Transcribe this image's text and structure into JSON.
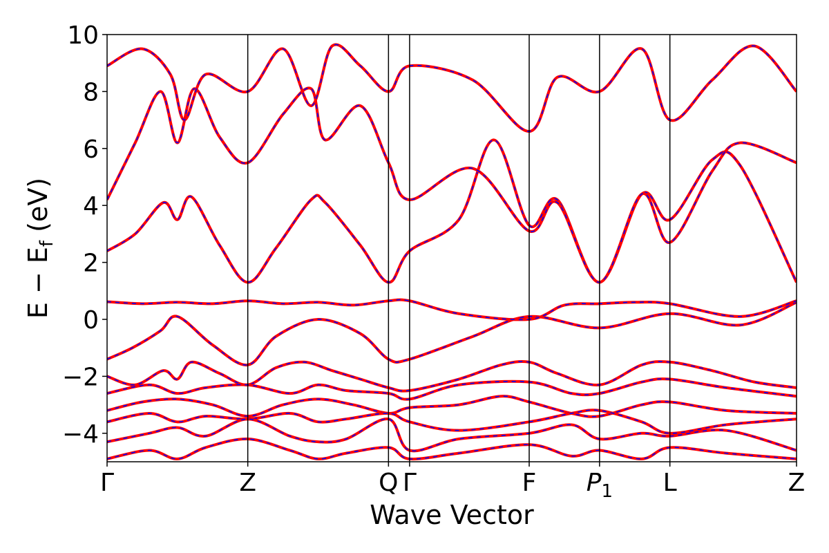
{
  "chart_data": {
    "type": "line",
    "xlabel": "Wave Vector",
    "ylabel": "E − E",
    "ylabel_subscript": "f",
    "ylabel_unit": " (eV)",
    "ylim": [
      -5,
      10
    ],
    "y_ticks": [
      -4,
      -2,
      0,
      2,
      4,
      6,
      8,
      10
    ],
    "y_tick_labels": [
      "−4",
      "−2",
      "0",
      "2",
      "4",
      "6",
      "8",
      "10"
    ],
    "kpath": [
      {
        "label": "Γ",
        "x": 0.0
      },
      {
        "label": "Z",
        "x": 1.0
      },
      {
        "label": "Q",
        "x": 2.0
      },
      {
        "label": "Γ",
        "x": 2.15
      },
      {
        "label": "F",
        "x": 3.0
      },
      {
        "label": "P",
        "sub": "1",
        "x": 3.5
      },
      {
        "label": "L",
        "x": 4.0
      },
      {
        "label": "Z",
        "x": 4.9
      }
    ],
    "xlim": [
      0,
      4.9
    ],
    "grid": false,
    "legend": "none",
    "line_color": "#ff0000",
    "dash_color": "#0000ff",
    "series": [
      {
        "x": [
          0,
          0.18,
          0.38,
          0.5,
          0.75,
          1.0,
          1.2,
          1.5,
          1.8,
          2.0,
          2.15,
          2.6,
          3.0,
          3.5,
          4.0,
          4.5,
          4.9
        ],
        "values": [
          -1.4,
          -1.0,
          -0.4,
          0.1,
          -0.9,
          -1.6,
          -0.6,
          0.0,
          -0.5,
          -1.4,
          -1.4,
          -0.6,
          0.1,
          -0.3,
          0.2,
          -0.2,
          0.6
        ]
      },
      {
        "x": [
          0,
          0.25,
          0.5,
          0.75,
          1.0,
          1.25,
          1.5,
          1.75,
          2.0,
          2.15,
          2.5,
          3.0,
          3.25,
          3.5,
          3.75,
          4.0,
          4.5,
          4.9
        ],
        "values": [
          0.62,
          0.55,
          0.6,
          0.55,
          0.65,
          0.55,
          0.6,
          0.5,
          0.65,
          0.65,
          0.2,
          0.0,
          0.5,
          0.55,
          0.6,
          0.55,
          0.1,
          0.65
        ]
      },
      {
        "x": [
          0,
          0.2,
          0.4,
          0.5,
          0.6,
          0.8,
          1.0,
          1.2,
          1.45,
          1.55,
          1.8,
          2.0,
          2.15,
          2.5,
          2.75,
          3.0,
          3.2,
          3.5,
          3.8,
          4.0,
          4.3,
          4.5,
          4.9
        ],
        "values": [
          2.4,
          3.0,
          4.1,
          3.5,
          4.3,
          2.6,
          1.3,
          2.5,
          4.2,
          4.1,
          2.6,
          1.3,
          2.4,
          3.5,
          6.3,
          3.3,
          4.2,
          1.3,
          4.4,
          3.5,
          5.6,
          5.4,
          1.3
        ]
      },
      {
        "x": [
          0,
          0.2,
          0.38,
          0.5,
          0.62,
          0.8,
          1.0,
          1.25,
          1.45,
          1.55,
          1.8,
          2.0,
          2.15,
          2.6,
          3.0,
          3.2,
          3.5,
          3.8,
          4.0,
          4.3,
          4.5,
          4.9
        ],
        "values": [
          4.2,
          6.2,
          8.0,
          6.2,
          8.1,
          6.4,
          5.5,
          7.2,
          8.1,
          6.3,
          7.5,
          5.5,
          4.2,
          5.3,
          3.1,
          4.1,
          1.3,
          4.4,
          2.7,
          5.2,
          6.2,
          5.5
        ]
      },
      {
        "x": [
          0,
          0.25,
          0.45,
          0.55,
          0.7,
          1.0,
          1.25,
          1.45,
          1.6,
          1.8,
          2.0,
          2.15,
          2.6,
          3.0,
          3.2,
          3.5,
          3.8,
          4.0,
          4.3,
          4.6,
          4.9
        ],
        "values": [
          8.9,
          9.5,
          8.6,
          7.0,
          8.6,
          8.0,
          9.5,
          7.5,
          9.6,
          8.9,
          8.0,
          8.9,
          8.4,
          6.6,
          8.5,
          8.0,
          9.5,
          7.0,
          8.4,
          9.6,
          8.0
        ]
      },
      {
        "x": [
          0,
          0.2,
          0.4,
          0.5,
          0.6,
          0.8,
          1.0,
          1.2,
          1.4,
          1.6,
          1.8,
          2.0,
          2.15,
          2.5,
          2.8,
          3.0,
          3.2,
          3.5,
          3.8,
          4.0,
          4.3,
          4.6,
          4.9
        ],
        "values": [
          -2.0,
          -2.3,
          -1.8,
          -2.1,
          -1.5,
          -1.9,
          -2.3,
          -1.7,
          -1.5,
          -1.8,
          -2.1,
          -2.4,
          -2.5,
          -2.1,
          -1.6,
          -1.5,
          -1.9,
          -2.3,
          -1.6,
          -1.5,
          -1.8,
          -2.2,
          -2.4
        ]
      },
      {
        "x": [
          0,
          0.3,
          0.5,
          0.7,
          1.0,
          1.3,
          1.5,
          1.7,
          2.0,
          2.15,
          2.5,
          3.0,
          3.3,
          3.5,
          3.8,
          4.0,
          4.4,
          4.9
        ],
        "values": [
          -2.6,
          -2.3,
          -2.6,
          -2.4,
          -2.3,
          -2.6,
          -2.3,
          -2.5,
          -2.6,
          -2.8,
          -2.3,
          -2.2,
          -2.6,
          -2.6,
          -2.2,
          -2.1,
          -2.4,
          -2.7
        ]
      },
      {
        "x": [
          0,
          0.25,
          0.5,
          0.75,
          1.0,
          1.25,
          1.5,
          1.75,
          2.0,
          2.15,
          2.5,
          2.8,
          3.0,
          3.3,
          3.5,
          3.8,
          4.0,
          4.4,
          4.9
        ],
        "values": [
          -3.2,
          -2.9,
          -2.8,
          -3.0,
          -3.4,
          -3.0,
          -2.8,
          -3.0,
          -3.3,
          -3.1,
          -3.0,
          -2.7,
          -2.9,
          -3.3,
          -3.4,
          -3.0,
          -2.9,
          -3.2,
          -3.3
        ]
      },
      {
        "x": [
          0,
          0.3,
          0.5,
          0.7,
          1.0,
          1.3,
          1.5,
          1.7,
          2.0,
          2.15,
          2.5,
          3.0,
          3.3,
          3.5,
          3.8,
          4.0,
          4.4,
          4.9
        ],
        "values": [
          -3.6,
          -3.3,
          -3.6,
          -3.4,
          -3.5,
          -3.3,
          -3.6,
          -3.5,
          -3.3,
          -3.6,
          -3.9,
          -3.6,
          -3.3,
          -3.2,
          -3.6,
          -4.0,
          -3.7,
          -3.5
        ]
      },
      {
        "x": [
          0,
          0.3,
          0.5,
          0.7,
          1.0,
          1.3,
          1.5,
          1.7,
          2.0,
          2.15,
          2.5,
          3.0,
          3.3,
          3.5,
          3.8,
          4.0,
          4.4,
          4.9
        ],
        "values": [
          -4.3,
          -4.0,
          -3.8,
          -4.1,
          -3.5,
          -4.1,
          -4.3,
          -4.2,
          -3.5,
          -4.6,
          -4.2,
          -4.0,
          -3.7,
          -4.2,
          -4.0,
          -4.1,
          -3.9,
          -4.6
        ]
      },
      {
        "x": [
          0,
          0.3,
          0.5,
          0.7,
          1.0,
          1.3,
          1.5,
          1.7,
          2.0,
          2.15,
          2.5,
          3.0,
          3.3,
          3.5,
          3.8,
          4.0,
          4.4,
          4.9
        ],
        "values": [
          -4.9,
          -4.6,
          -4.9,
          -4.5,
          -4.2,
          -4.6,
          -4.9,
          -4.7,
          -4.5,
          -4.9,
          -4.7,
          -4.4,
          -4.8,
          -4.6,
          -4.9,
          -4.5,
          -4.7,
          -4.9
        ]
      }
    ]
  }
}
